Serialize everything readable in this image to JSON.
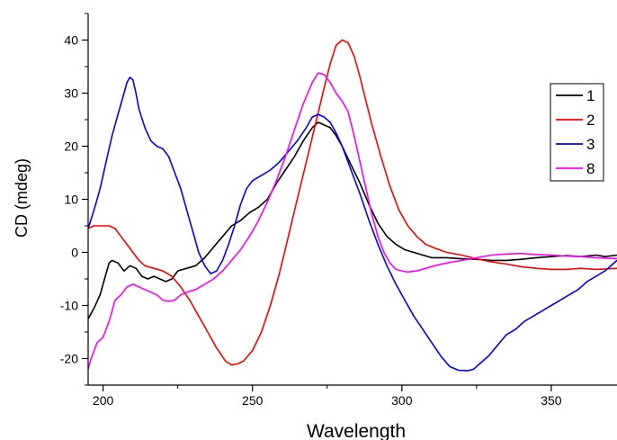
{
  "chart_data": {
    "type": "line",
    "title": "",
    "xlabel": "Wavelength",
    "ylabel": "CD (mdeg)",
    "xlim": [
      195,
      372
    ],
    "ylim": [
      -25,
      45
    ],
    "xticks": [
      200,
      250,
      300,
      350
    ],
    "yticks": [
      -20,
      -10,
      0,
      10,
      20,
      30,
      40
    ],
    "grid": false,
    "legend_position": "top-right",
    "series": [
      {
        "name": "1",
        "color": "#000000",
        "points": [
          [
            195,
            -12.5
          ],
          [
            197,
            -10.5
          ],
          [
            199,
            -8
          ],
          [
            201,
            -4
          ],
          [
            202,
            -2
          ],
          [
            203,
            -1.5
          ],
          [
            205,
            -2
          ],
          [
            207,
            -3.5
          ],
          [
            209,
            -2.5
          ],
          [
            211,
            -3
          ],
          [
            213,
            -4.5
          ],
          [
            215,
            -5
          ],
          [
            217,
            -4.5
          ],
          [
            219,
            -5
          ],
          [
            221,
            -5.5
          ],
          [
            223,
            -5
          ],
          [
            225,
            -3.5
          ],
          [
            228,
            -3
          ],
          [
            231,
            -2.5
          ],
          [
            234,
            -1
          ],
          [
            237,
            1
          ],
          [
            240,
            3
          ],
          [
            243,
            5
          ],
          [
            246,
            6
          ],
          [
            249,
            7.5
          ],
          [
            252,
            8.5
          ],
          [
            255,
            10
          ],
          [
            258,
            13
          ],
          [
            261,
            15.5
          ],
          [
            264,
            18
          ],
          [
            267,
            21
          ],
          [
            270,
            23.5
          ],
          [
            272,
            24.5
          ],
          [
            274,
            24
          ],
          [
            276,
            23.5
          ],
          [
            278,
            22
          ],
          [
            280,
            20
          ],
          [
            283,
            16.5
          ],
          [
            286,
            13
          ],
          [
            289,
            9
          ],
          [
            292,
            5.5
          ],
          [
            295,
            3
          ],
          [
            298,
            1.5
          ],
          [
            301,
            0.5
          ],
          [
            304,
            0
          ],
          [
            307,
            -0.5
          ],
          [
            310,
            -1
          ],
          [
            315,
            -1
          ],
          [
            320,
            -1.2
          ],
          [
            325,
            -1.3
          ],
          [
            330,
            -1.5
          ],
          [
            335,
            -1.5
          ],
          [
            340,
            -1.3
          ],
          [
            345,
            -1
          ],
          [
            350,
            -0.8
          ],
          [
            355,
            -0.6
          ],
          [
            360,
            -0.8
          ],
          [
            365,
            -0.5
          ],
          [
            368,
            -0.8
          ],
          [
            372,
            -0.5
          ]
        ]
      },
      {
        "name": "2",
        "color": "#ff0000",
        "points": [
          [
            195,
            4.5
          ],
          [
            197,
            5
          ],
          [
            200,
            5
          ],
          [
            202,
            5
          ],
          [
            204,
            4.5
          ],
          [
            206,
            3
          ],
          [
            208,
            1.5
          ],
          [
            210,
            0
          ],
          [
            212,
            -1.5
          ],
          [
            214,
            -2.5
          ],
          [
            217,
            -3
          ],
          [
            220,
            -3.5
          ],
          [
            223,
            -4.5
          ],
          [
            226,
            -6.5
          ],
          [
            229,
            -9
          ],
          [
            232,
            -12
          ],
          [
            235,
            -15
          ],
          [
            238,
            -18
          ],
          [
            241,
            -20.5
          ],
          [
            243,
            -21.2
          ],
          [
            245,
            -21
          ],
          [
            247,
            -20.5
          ],
          [
            250,
            -18.5
          ],
          [
            253,
            -15
          ],
          [
            256,
            -10
          ],
          [
            259,
            -4
          ],
          [
            262,
            3
          ],
          [
            265,
            10
          ],
          [
            268,
            17
          ],
          [
            271,
            24
          ],
          [
            274,
            31
          ],
          [
            276,
            35.5
          ],
          [
            278,
            39
          ],
          [
            280,
            40
          ],
          [
            282,
            39.5
          ],
          [
            284,
            37
          ],
          [
            286,
            33
          ],
          [
            288,
            28.5
          ],
          [
            290,
            24
          ],
          [
            293,
            18
          ],
          [
            296,
            12.5
          ],
          [
            299,
            8
          ],
          [
            302,
            5
          ],
          [
            305,
            3
          ],
          [
            308,
            1.5
          ],
          [
            311,
            0.8
          ],
          [
            315,
            0
          ],
          [
            320,
            -0.5
          ],
          [
            325,
            -1.2
          ],
          [
            330,
            -1.8
          ],
          [
            335,
            -2.2
          ],
          [
            340,
            -2.7
          ],
          [
            345,
            -3
          ],
          [
            350,
            -3.2
          ],
          [
            355,
            -3.2
          ],
          [
            360,
            -3
          ],
          [
            365,
            -3.2
          ],
          [
            372,
            -3
          ]
        ]
      },
      {
        "name": "3",
        "color": "#0000ff",
        "points": [
          [
            195,
            4.5
          ],
          [
            197,
            8
          ],
          [
            199,
            12
          ],
          [
            201,
            17
          ],
          [
            203,
            22
          ],
          [
            205,
            26
          ],
          [
            207,
            30
          ],
          [
            208,
            32
          ],
          [
            209,
            33
          ],
          [
            210,
            32.5
          ],
          [
            211,
            30
          ],
          [
            212,
            27
          ],
          [
            214,
            23.5
          ],
          [
            216,
            21
          ],
          [
            218,
            20
          ],
          [
            220,
            19.5
          ],
          [
            222,
            18
          ],
          [
            224,
            15
          ],
          [
            226,
            12
          ],
          [
            228,
            8
          ],
          [
            230,
            4
          ],
          [
            232,
            0
          ],
          [
            234,
            -2.5
          ],
          [
            236,
            -4
          ],
          [
            238,
            -3.5
          ],
          [
            240,
            -1.5
          ],
          [
            242,
            1.5
          ],
          [
            244,
            5
          ],
          [
            246,
            9
          ],
          [
            248,
            12
          ],
          [
            250,
            13.5
          ],
          [
            253,
            14.5
          ],
          [
            256,
            15.5
          ],
          [
            259,
            17
          ],
          [
            262,
            19
          ],
          [
            265,
            21
          ],
          [
            268,
            23.5
          ],
          [
            270,
            25.5
          ],
          [
            272,
            26
          ],
          [
            274,
            25.5
          ],
          [
            276,
            24.5
          ],
          [
            278,
            22.5
          ],
          [
            280,
            20
          ],
          [
            283,
            15.5
          ],
          [
            286,
            11
          ],
          [
            289,
            6
          ],
          [
            292,
            1.5
          ],
          [
            295,
            -2.5
          ],
          [
            298,
            -6
          ],
          [
            301,
            -9
          ],
          [
            304,
            -12
          ],
          [
            307,
            -14.5
          ],
          [
            310,
            -17
          ],
          [
            313,
            -19.5
          ],
          [
            316,
            -21.5
          ],
          [
            319,
            -22.2
          ],
          [
            322,
            -22.3
          ],
          [
            324,
            -22
          ],
          [
            326,
            -21
          ],
          [
            329,
            -19.5
          ],
          [
            332,
            -17.5
          ],
          [
            335,
            -15.5
          ],
          [
            338,
            -14.5
          ],
          [
            341,
            -13
          ],
          [
            344,
            -12
          ],
          [
            347,
            -11
          ],
          [
            350,
            -10
          ],
          [
            353,
            -9
          ],
          [
            356,
            -8
          ],
          [
            359,
            -7
          ],
          [
            362,
            -5.5
          ],
          [
            365,
            -4.5
          ],
          [
            368,
            -3.5
          ],
          [
            372,
            -1.5
          ]
        ]
      },
      {
        "name": "8",
        "color": "#ff00ff",
        "points": [
          [
            195,
            -22
          ],
          [
            196,
            -20
          ],
          [
            198,
            -17
          ],
          [
            200,
            -16
          ],
          [
            202,
            -13
          ],
          [
            204,
            -9
          ],
          [
            206,
            -8
          ],
          [
            208,
            -6.5
          ],
          [
            210,
            -6
          ],
          [
            212,
            -6.5
          ],
          [
            214,
            -7
          ],
          [
            216,
            -7.5
          ],
          [
            218,
            -8
          ],
          [
            220,
            -9
          ],
          [
            222,
            -9.2
          ],
          [
            224,
            -9
          ],
          [
            226,
            -8
          ],
          [
            228,
            -7.5
          ],
          [
            231,
            -7
          ],
          [
            234,
            -6
          ],
          [
            237,
            -5
          ],
          [
            240,
            -3.5
          ],
          [
            243,
            -1.5
          ],
          [
            246,
            0.5
          ],
          [
            249,
            3
          ],
          [
            252,
            6
          ],
          [
            255,
            9.5
          ],
          [
            258,
            13.5
          ],
          [
            261,
            18
          ],
          [
            264,
            23
          ],
          [
            267,
            28
          ],
          [
            270,
            32
          ],
          [
            272,
            33.8
          ],
          [
            274,
            33.5
          ],
          [
            276,
            32
          ],
          [
            278,
            30
          ],
          [
            280,
            28.5
          ],
          [
            282,
            26.5
          ],
          [
            284,
            22
          ],
          [
            286,
            17
          ],
          [
            288,
            12
          ],
          [
            290,
            7
          ],
          [
            292,
            3
          ],
          [
            294,
            0
          ],
          [
            296,
            -2
          ],
          [
            298,
            -3.2
          ],
          [
            300,
            -3.5
          ],
          [
            302,
            -3.7
          ],
          [
            305,
            -3.5
          ],
          [
            308,
            -3
          ],
          [
            311,
            -2.5
          ],
          [
            315,
            -2
          ],
          [
            320,
            -1.5
          ],
          [
            325,
            -1
          ],
          [
            330,
            -0.5
          ],
          [
            335,
            -0.3
          ],
          [
            340,
            -0.2
          ],
          [
            345,
            -0.4
          ],
          [
            350,
            -0.5
          ],
          [
            355,
            -0.7
          ],
          [
            360,
            -0.8
          ],
          [
            365,
            -1
          ],
          [
            372,
            -1.2
          ]
        ]
      }
    ]
  }
}
